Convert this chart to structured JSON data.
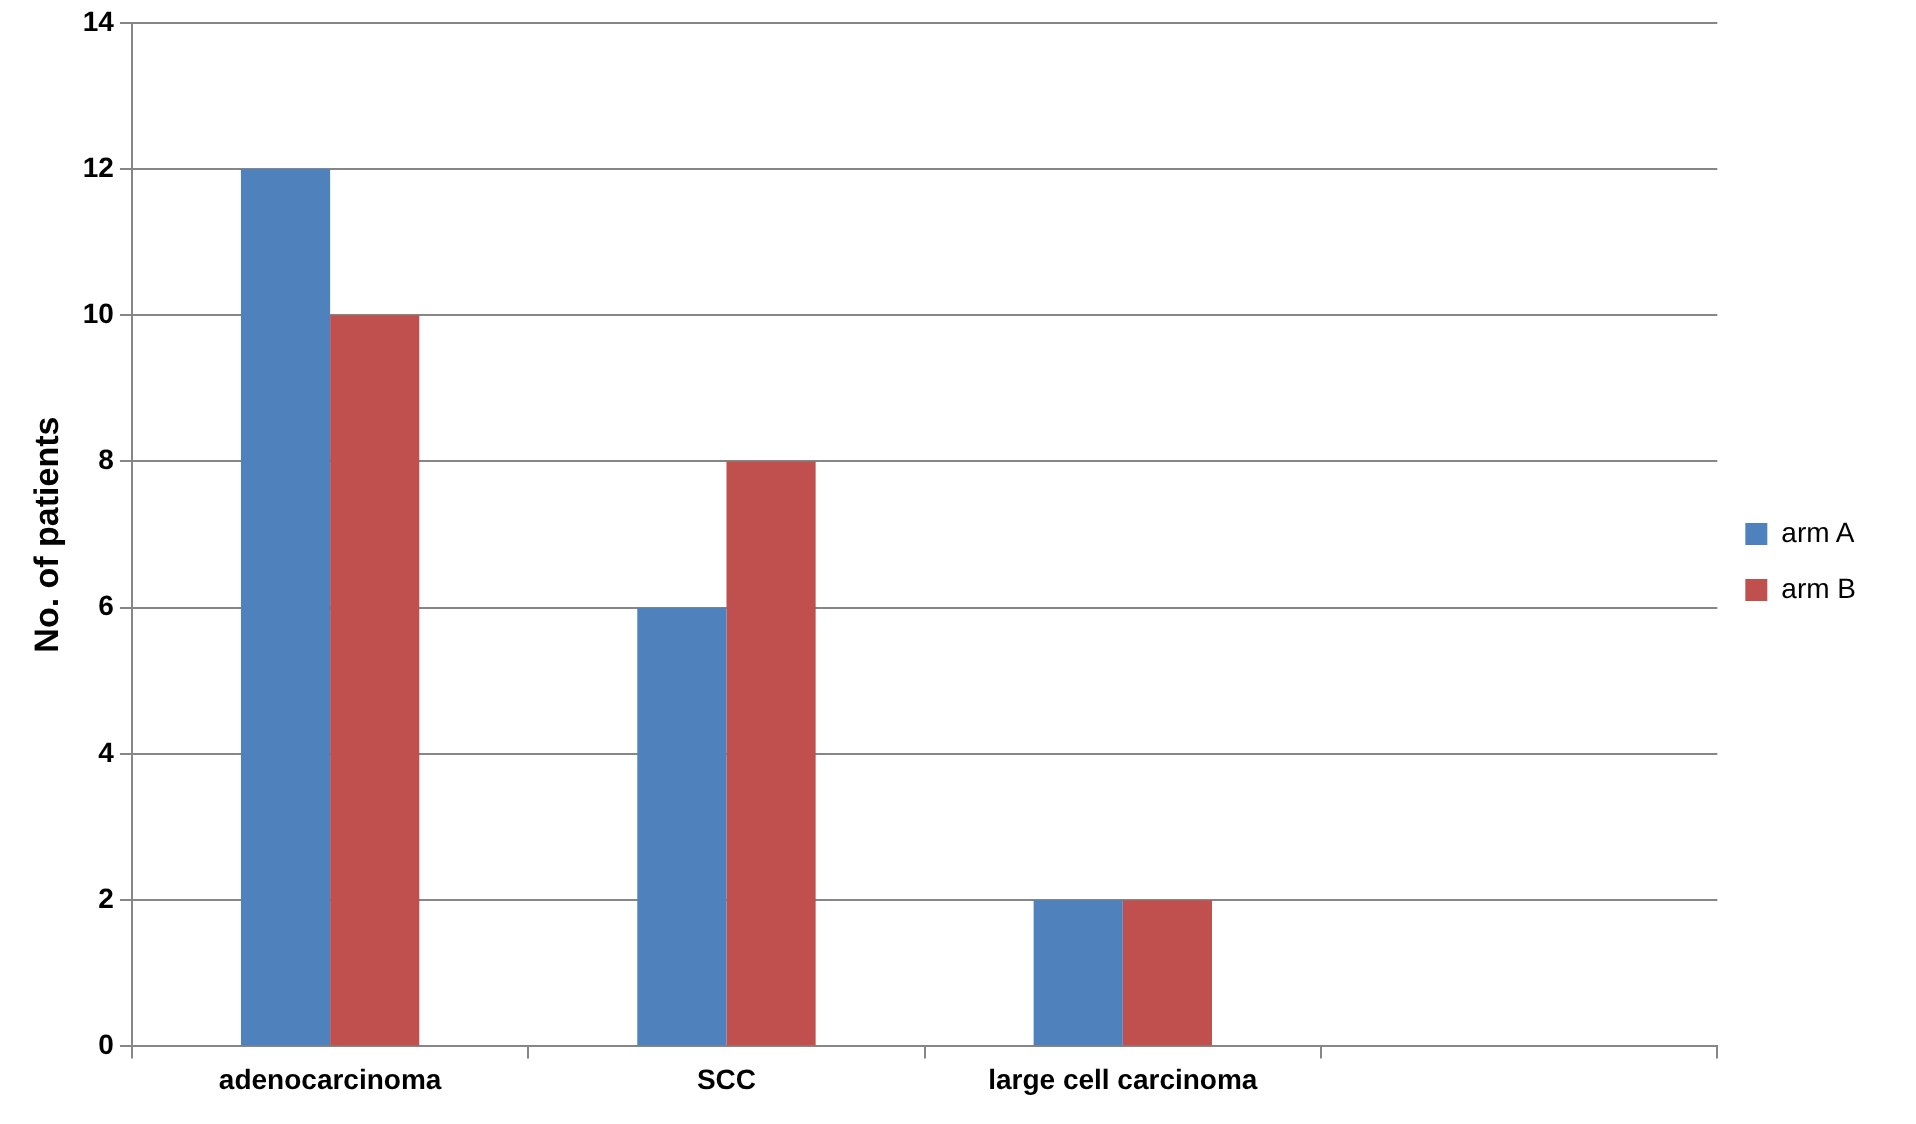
{
  "chart_data": {
    "type": "bar",
    "ylabel": "No. of patients",
    "categories": [
      "adenocarcinoma",
      "SCC",
      "large cell carcinoma",
      null
    ],
    "series": [
      {
        "name": "arm A",
        "color": "#4f81bd",
        "values": [
          12,
          6,
          2,
          null
        ]
      },
      {
        "name": "arm B",
        "color": "#c0504d",
        "values": [
          10,
          8,
          2,
          null
        ]
      }
    ],
    "ylim": [
      0,
      14
    ],
    "yticks": [
      0,
      2,
      4,
      6,
      8,
      10,
      12,
      14
    ],
    "grid": "y",
    "legend": "right"
  }
}
